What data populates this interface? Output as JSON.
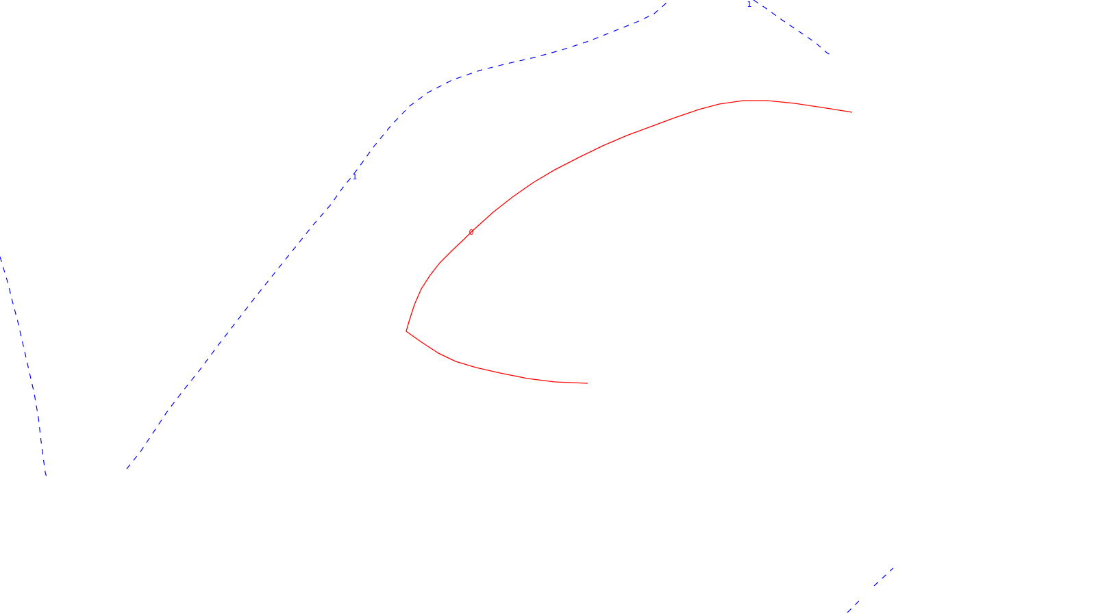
{
  "chart_data": {
    "type": "contour",
    "title": "",
    "xlabel": "",
    "ylabel": "",
    "grid": false,
    "legend": "none",
    "levels": [
      {
        "name": "contour-level-0",
        "level": 0,
        "label": "0",
        "color": "#ff0000",
        "style": "solid"
      },
      {
        "name": "contour-level-1",
        "level": 1,
        "label": "1",
        "color": "#0000ff",
        "style": "dashed"
      }
    ]
  }
}
